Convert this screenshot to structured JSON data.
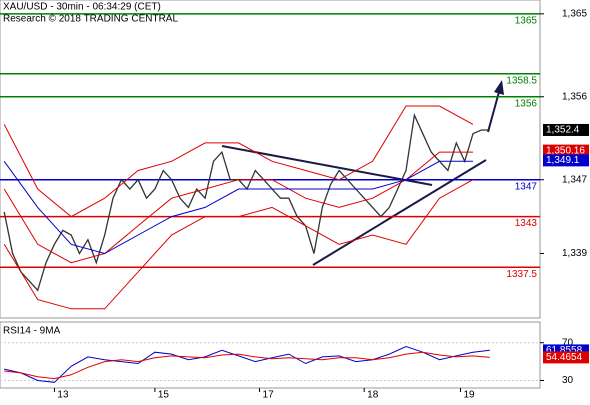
{
  "chart_data": [
    {
      "type": "line",
      "title": "XAU/USD - 30min - 06:34:29 (CET)",
      "subtitle": "Research © 2018 TRADING CENTRAL",
      "xlim": [
        -1,
        128
      ],
      "xticks": [
        {
          "value": 12,
          "label": "13"
        },
        {
          "value": 36,
          "label": "15"
        },
        {
          "value": 61,
          "label": "17"
        },
        {
          "value": 86,
          "label": "18"
        },
        {
          "value": 109,
          "label": "19"
        }
      ],
      "ylim": [
        1332,
        1366.5
      ],
      "yticks": [
        {
          "value": 1365,
          "label": "1,365"
        },
        {
          "value": 1356,
          "label": "1,356"
        },
        {
          "value": 1347,
          "label": "1,347"
        },
        {
          "value": 1339,
          "label": "1,339"
        }
      ],
      "levels": [
        {
          "value": 1365,
          "color": "#008000"
        },
        {
          "value": 1358.5,
          "color": "#008000"
        },
        {
          "value": 1356,
          "color": "#008000"
        },
        {
          "value": 1347,
          "color": "#0000cc"
        },
        {
          "value": 1343,
          "color": "#dd0000"
        },
        {
          "value": 1337.5,
          "color": "#dd0000"
        }
      ],
      "price_tags": [
        {
          "value": 1352.4,
          "label": "1,352.4",
          "color": "#000000"
        },
        {
          "value": 1350.16,
          "label": "1,350.16",
          "color": "#dd0000"
        },
        {
          "value": 1349.1,
          "label": "1,349.1",
          "color": "#0000cc"
        }
      ],
      "series": [
        {
          "color": "#333333",
          "width": 1.3,
          "x": [
            0,
            2,
            4,
            6,
            8,
            10,
            12,
            14,
            16,
            18,
            20,
            22,
            24,
            26,
            28,
            30,
            32,
            34,
            36,
            38,
            40,
            42,
            44,
            46,
            48,
            50,
            52,
            54,
            56,
            58,
            60,
            62,
            64,
            66,
            68,
            70,
            72,
            74,
            76,
            78,
            80,
            82,
            84,
            86,
            88,
            90,
            92,
            94,
            96,
            98,
            100,
            102,
            104,
            106,
            108,
            110,
            112,
            114,
            116
          ],
          "values": [
            1343.5,
            1339,
            1337,
            1336,
            1335,
            1338,
            1340,
            1341.5,
            1341,
            1339,
            1340.5,
            1338,
            1341,
            1345,
            1347,
            1346,
            1347,
            1345,
            1346,
            1348,
            1347,
            1345,
            1344,
            1346,
            1345,
            1349,
            1350,
            1347,
            1347,
            1346,
            1348,
            1347,
            1346,
            1345,
            1345,
            1343,
            1342,
            1339,
            1344,
            1346.5,
            1348,
            1347,
            1346,
            1345,
            1344,
            1343,
            1344,
            1346,
            1348,
            1354,
            1352,
            1350,
            1349,
            1348,
            1351,
            1349,
            1352,
            1352.4,
            1352.4
          ]
        },
        {
          "color": "#dd0000",
          "width": 1,
          "x": [
            0,
            8,
            16,
            24,
            32,
            40,
            48,
            56,
            64,
            72,
            80,
            88,
            96,
            104,
            112
          ],
          "values": [
            1353,
            1346,
            1343,
            1345,
            1348,
            1349,
            1351,
            1351,
            1349,
            1348,
            1347,
            1349,
            1355,
            1355,
            1353
          ]
        },
        {
          "color": "#dd0000",
          "width": 1,
          "x": [
            0,
            8,
            16,
            24,
            32,
            40,
            48,
            56,
            64,
            72,
            80,
            88,
            96,
            104,
            112
          ],
          "values": [
            1346,
            1340,
            1338,
            1339,
            1342,
            1345,
            1346,
            1347,
            1347,
            1345,
            1344,
            1345,
            1347,
            1350,
            1350
          ]
        },
        {
          "color": "#dd0000",
          "width": 1,
          "x": [
            0,
            8,
            16,
            24,
            32,
            40,
            48,
            56,
            64,
            72,
            80,
            88,
            96,
            104,
            112
          ],
          "values": [
            1340,
            1334,
            1333,
            1333,
            1337,
            1341,
            1343,
            1343,
            1344,
            1342,
            1340,
            1341,
            1340,
            1345,
            1347
          ]
        },
        {
          "color": "#0000cc",
          "width": 1,
          "x": [
            0,
            8,
            16,
            24,
            32,
            40,
            48,
            56,
            64,
            72,
            80,
            88,
            96,
            104,
            112
          ],
          "values": [
            1349,
            1344,
            1340,
            1339,
            1341,
            1343,
            1344,
            1346,
            1346,
            1346,
            1346,
            1346,
            1347,
            1349,
            1349
          ]
        }
      ]
    },
    {
      "type": "line",
      "title": "RSI14 - 9MA",
      "xlim": [
        -1,
        128
      ],
      "ylim": [
        22,
        92
      ],
      "yticks": [
        70,
        30
      ],
      "price_tags": [
        {
          "value": 61.8558,
          "color": "#0000cc"
        },
        {
          "value": 54.4654,
          "color": "#dd0000"
        }
      ],
      "series": [
        {
          "color": "#0000cc",
          "width": 1,
          "x": [
            0,
            4,
            8,
            12,
            16,
            20,
            24,
            28,
            32,
            36,
            40,
            44,
            48,
            52,
            56,
            60,
            64,
            68,
            72,
            76,
            80,
            84,
            88,
            92,
            96,
            100,
            104,
            108,
            112,
            116
          ],
          "values": [
            42,
            38,
            30,
            28,
            45,
            55,
            52,
            50,
            48,
            60,
            58,
            52,
            55,
            62,
            56,
            50,
            54,
            58,
            48,
            55,
            56,
            50,
            52,
            58,
            66,
            60,
            52,
            56,
            60,
            62
          ]
        },
        {
          "color": "#dd0000",
          "width": 1,
          "x": [
            0,
            4,
            8,
            12,
            16,
            20,
            24,
            28,
            32,
            36,
            40,
            44,
            48,
            52,
            56,
            60,
            64,
            68,
            72,
            76,
            80,
            84,
            88,
            92,
            96,
            100,
            104,
            108,
            112,
            116
          ],
          "values": [
            40,
            38,
            34,
            32,
            36,
            44,
            50,
            52,
            50,
            54,
            56,
            55,
            54,
            57,
            58,
            55,
            53,
            54,
            53,
            52,
            54,
            54,
            52,
            54,
            58,
            60,
            57,
            55,
            56,
            54.5
          ]
        }
      ]
    }
  ]
}
